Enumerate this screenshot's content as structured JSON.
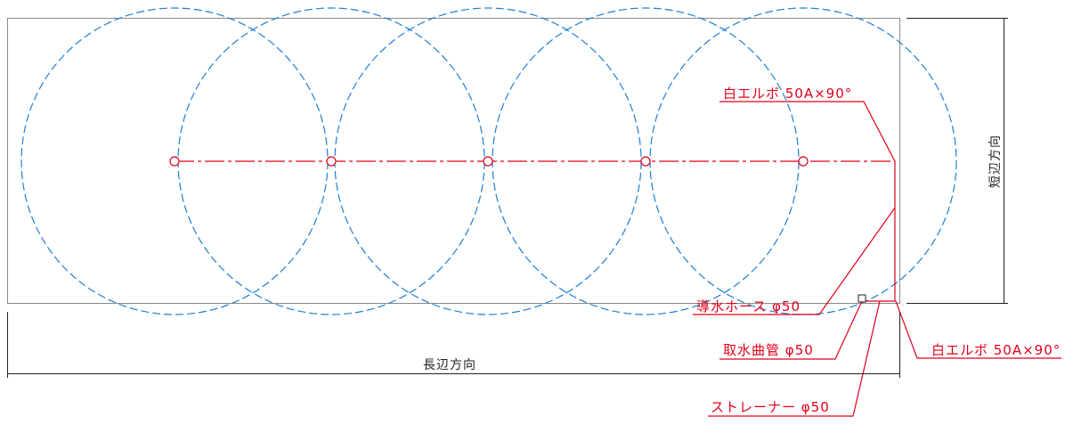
{
  "colors": {
    "outline": "#8a8a8a",
    "dimension": "#222222",
    "coverage": "#1e7fd6",
    "pipe": "#e0001b"
  },
  "coverage_circle_count": 5,
  "labels": {
    "elbow_top": "白エルボ 50A×90°",
    "hose": "導水ホース φ50",
    "intake_bend": "取水曲管 φ50",
    "elbow_right": "白エルボ 50A×90°",
    "strainer": "ストレーナー φ50"
  },
  "dimensions": {
    "long_side": "長辺方向",
    "short_side": "短辺方向"
  }
}
